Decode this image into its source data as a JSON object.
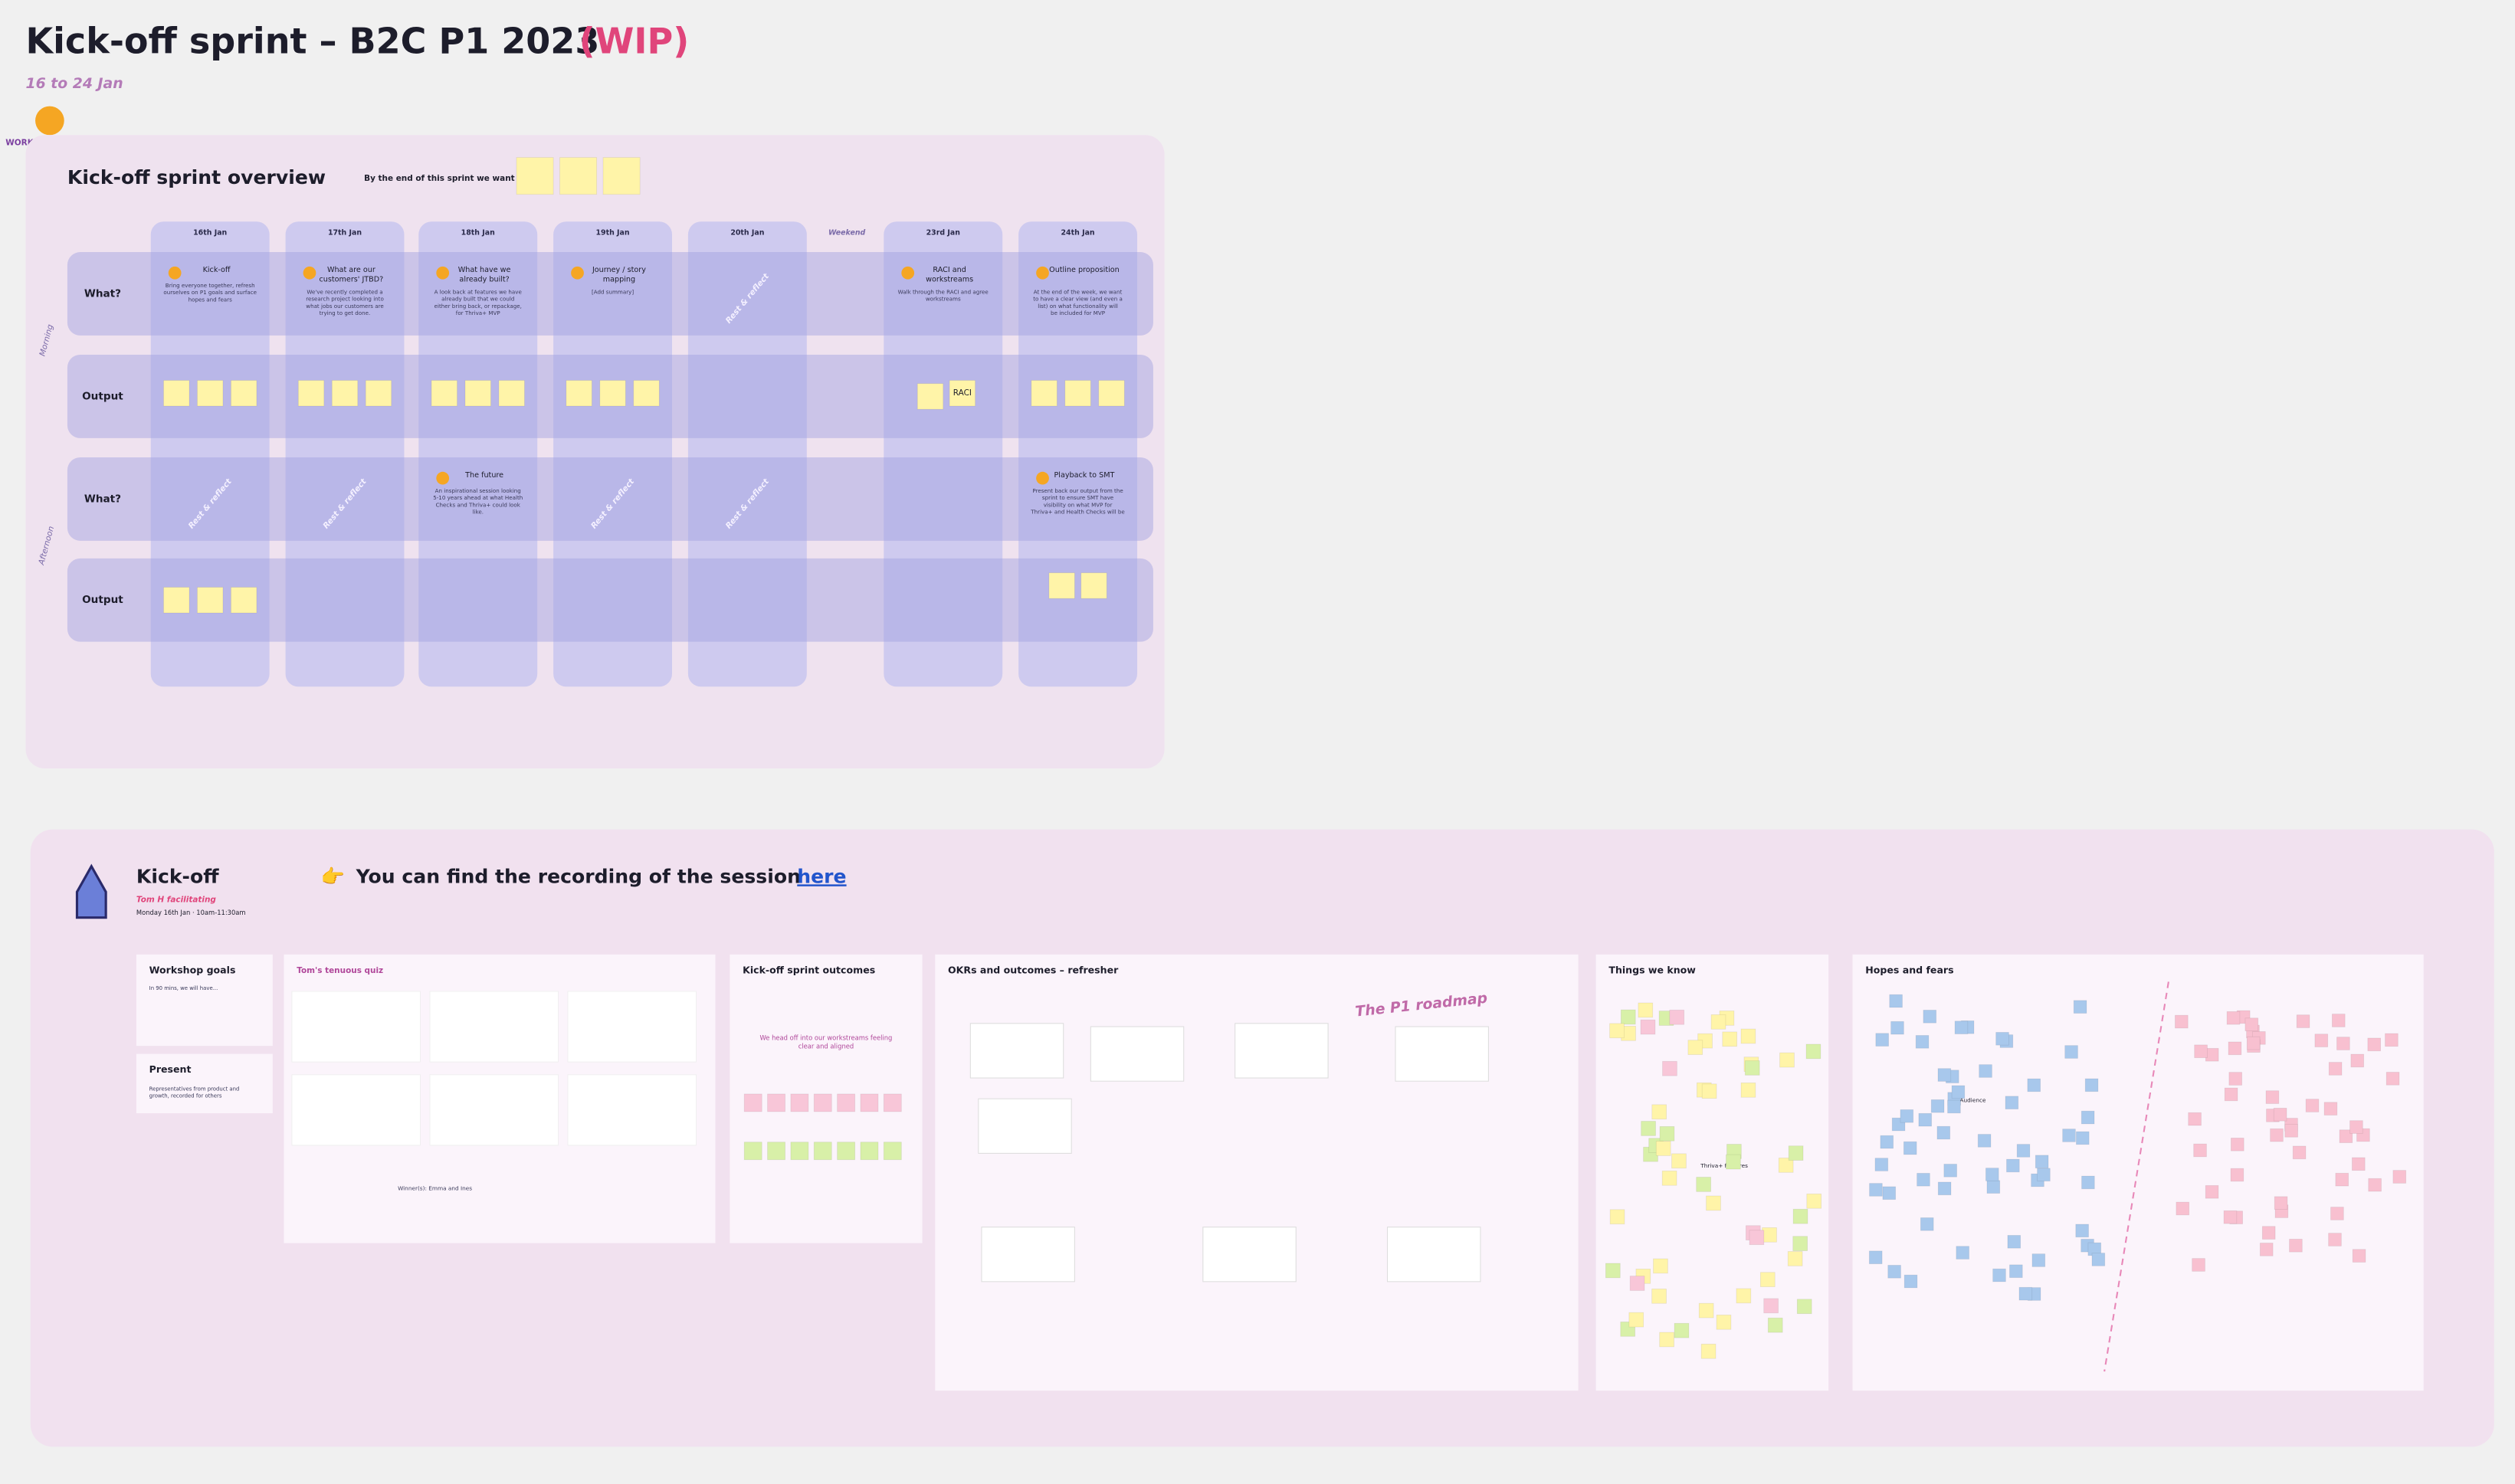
{
  "header": {
    "title": "Kick-off sprint – B2C P1 2023",
    "wip": "(WIP)",
    "dates": "16 to 24 Jan",
    "badge": "WORK IN PROGRESS"
  },
  "overview": {
    "title": "Kick-off sprint overview",
    "goal_prompt": "By the end of this sprint we want to:",
    "columns": [
      "16th Jan",
      "17th Jan",
      "18th Jan",
      "19th Jan",
      "20th Jan",
      "Weekend",
      "23rd Jan",
      "24th Jan"
    ],
    "rows": [
      "What?",
      "Output",
      "What?",
      "Output"
    ],
    "sessions": [
      "Morning",
      "Afternoon"
    ],
    "morning": [
      {
        "title": "Kick-off",
        "text": "Bring everyone together, refresh ourselves on P1 goals and surface hopes and fears"
      },
      {
        "title": "What are our customers' JTBD?",
        "text": "We've recently completed a research project looking into what jobs our customers are trying to get done."
      },
      {
        "title": "What have we already built?",
        "text": "A look back at features we have already built that we could either bring back, or repackage, for Thriva+ MVP"
      },
      {
        "title": "Journey / story mapping",
        "text": "[Add summary]"
      },
      {
        "title": "Rest & reflect",
        "text": ""
      },
      {
        "title": "RACI and workstreams",
        "text": "Walk through the RACI and agree workstreams"
      },
      {
        "title": "Outline proposition",
        "text": "At the end of the week, we want to have a clear view (and even a list) on what functionality will be included for MVP"
      }
    ],
    "afternoon": [
      {
        "title": "Rest & reflect",
        "text": ""
      },
      {
        "title": "Rest & reflect",
        "text": ""
      },
      {
        "title": "The future",
        "text": "An inspirational session looking 5-10 years ahead at what Health Checks and Thriva+ could look like."
      },
      {
        "title": "Rest & reflect",
        "text": ""
      },
      {
        "title": "Rest & reflect",
        "text": ""
      },
      {
        "title": "Playback to SMT",
        "text": "Present back our output from the sprint to ensure SMT have visibility on what MVP for Thriva+ and Health Checks will be"
      }
    ],
    "raci": "RACI"
  },
  "kickoff": {
    "title": "Kick-off",
    "facilitator": "Tom H facilitating",
    "when": "Monday 16th Jan · 10am-11:30am",
    "recording": "You can find the recording of the session",
    "link": "here",
    "frames": [
      {
        "title": "Workshop goals",
        "text": "In 90 mins, we will have..."
      },
      {
        "title": "Present",
        "text": "Representatives from product and growth, recorded for others"
      },
      {
        "title": "Tom's tenuous quiz",
        "text": "Winner(s): Emma and Ines"
      },
      {
        "title": "Kick-off sprint outcomes",
        "text": "We head off into our workstreams feeling clear and aligned"
      },
      {
        "title": "OKRs and outcomes – refresher",
        "text": "The P1 roadmap"
      },
      {
        "title": "Things we know",
        "text": "Thriva+ features"
      },
      {
        "title": "Hopes and fears",
        "text": "Audience"
      }
    ]
  }
}
